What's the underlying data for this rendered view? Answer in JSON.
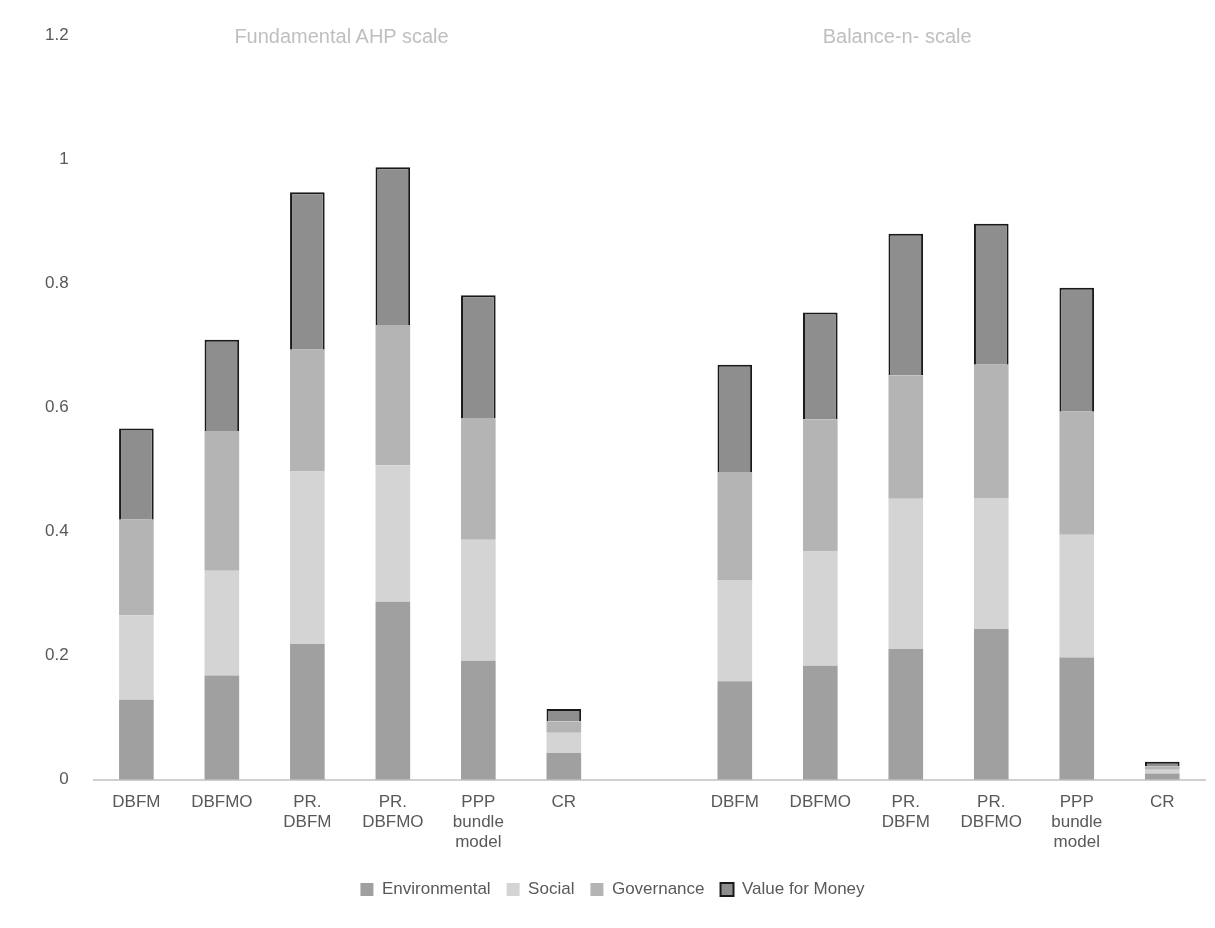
{
  "chart_data": {
    "type": "bar",
    "stacked": true,
    "categories": [
      "DBFM",
      "DBFMO",
      "PR. DBFM",
      "PR. DBFMO",
      "PPP bundle model",
      "CR",
      null,
      "DBFM",
      "DBFMO",
      "PR. DBFM",
      "PR. DBFMO",
      "PPP bundle model",
      "CR"
    ],
    "series": [
      {
        "name": "Environmental",
        "color": "#a0a0a0",
        "values": [
          0.129,
          0.168,
          0.219,
          0.287,
          0.192,
          0.043,
          null,
          0.159,
          0.184,
          0.211,
          0.243,
          0.197,
          0.01
        ]
      },
      {
        "name": "Social",
        "color": "#d4d4d4",
        "values": [
          0.136,
          0.169,
          0.278,
          0.22,
          0.195,
          0.033,
          null,
          0.163,
          0.184,
          0.242,
          0.211,
          0.198,
          0.006
        ]
      },
      {
        "name": "Governance",
        "color": "#b4b4b4",
        "values": [
          0.154,
          0.225,
          0.196,
          0.226,
          0.196,
          0.018,
          null,
          0.174,
          0.213,
          0.199,
          0.215,
          0.198,
          0.006
        ]
      },
      {
        "name": "Value for Money",
        "color": "#8e8e8e",
        "values": [
          0.147,
          0.147,
          0.254,
          0.254,
          0.198,
          0.02,
          null,
          0.173,
          0.172,
          0.228,
          0.227,
          0.2,
          0.007
        ]
      }
    ],
    "ylim": [
      0,
      1.2
    ],
    "yticks": [
      0,
      0.2,
      0.4,
      0.6,
      0.8,
      1,
      1.2
    ],
    "grid": false,
    "legend": "bottom",
    "annotations": [
      "Fundamental AHP scale",
      "Balance-n- scale"
    ]
  }
}
